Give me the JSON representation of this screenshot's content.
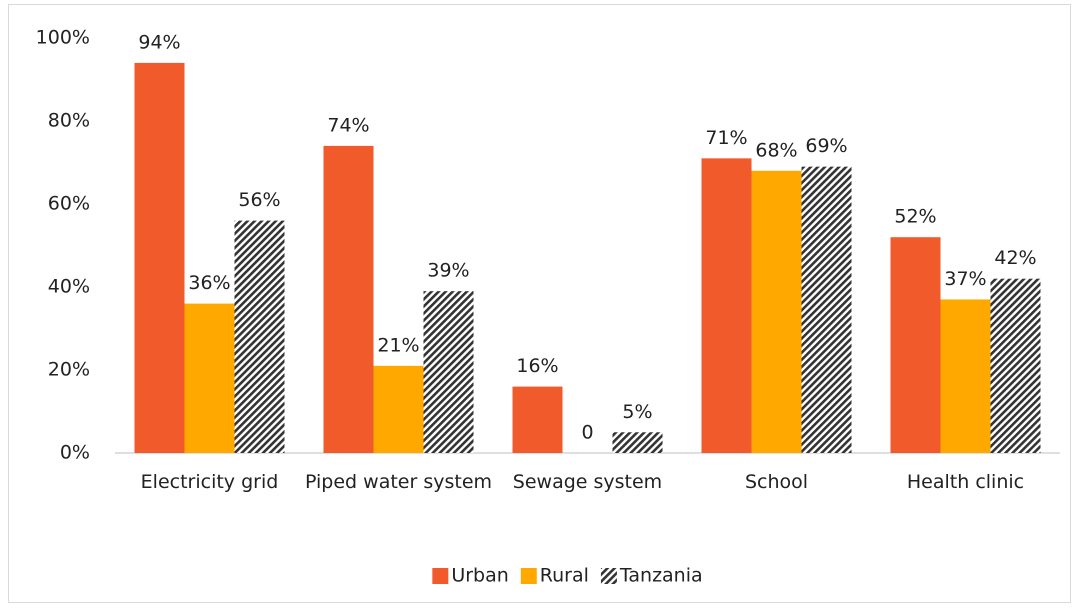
{
  "chart_data": {
    "type": "bar",
    "categories": [
      "Electricity grid",
      "Piped water system",
      "Sewage system",
      "School",
      "Health clinic"
    ],
    "series": [
      {
        "name": "Urban",
        "color": "#f15a2b",
        "values": [
          94,
          74,
          16,
          71,
          52
        ],
        "value_labels": [
          "94%",
          "74%",
          "16%",
          "71%",
          "52%"
        ]
      },
      {
        "name": "Rural",
        "color": "#ffa800",
        "values": [
          36,
          21,
          0,
          68,
          37
        ],
        "value_labels": [
          "36%",
          "21%",
          "0",
          "68%",
          "37%"
        ]
      },
      {
        "name": "Tanzania",
        "color": "#333333",
        "pattern": "hatch",
        "values": [
          56,
          39,
          5,
          69,
          42
        ],
        "value_labels": [
          "56%",
          "39%",
          "5%",
          "69%",
          "42%"
        ]
      }
    ],
    "ylim": [
      0,
      100
    ],
    "yticks": [
      {
        "value": 0,
        "label": "0%"
      },
      {
        "value": 20,
        "label": "20%"
      },
      {
        "value": 40,
        "label": "40%"
      },
      {
        "value": 60,
        "label": "60%"
      },
      {
        "value": 80,
        "label": "80%"
      },
      {
        "value": 100,
        "label": "100%"
      }
    ],
    "grid": false,
    "legend": "bottom"
  }
}
